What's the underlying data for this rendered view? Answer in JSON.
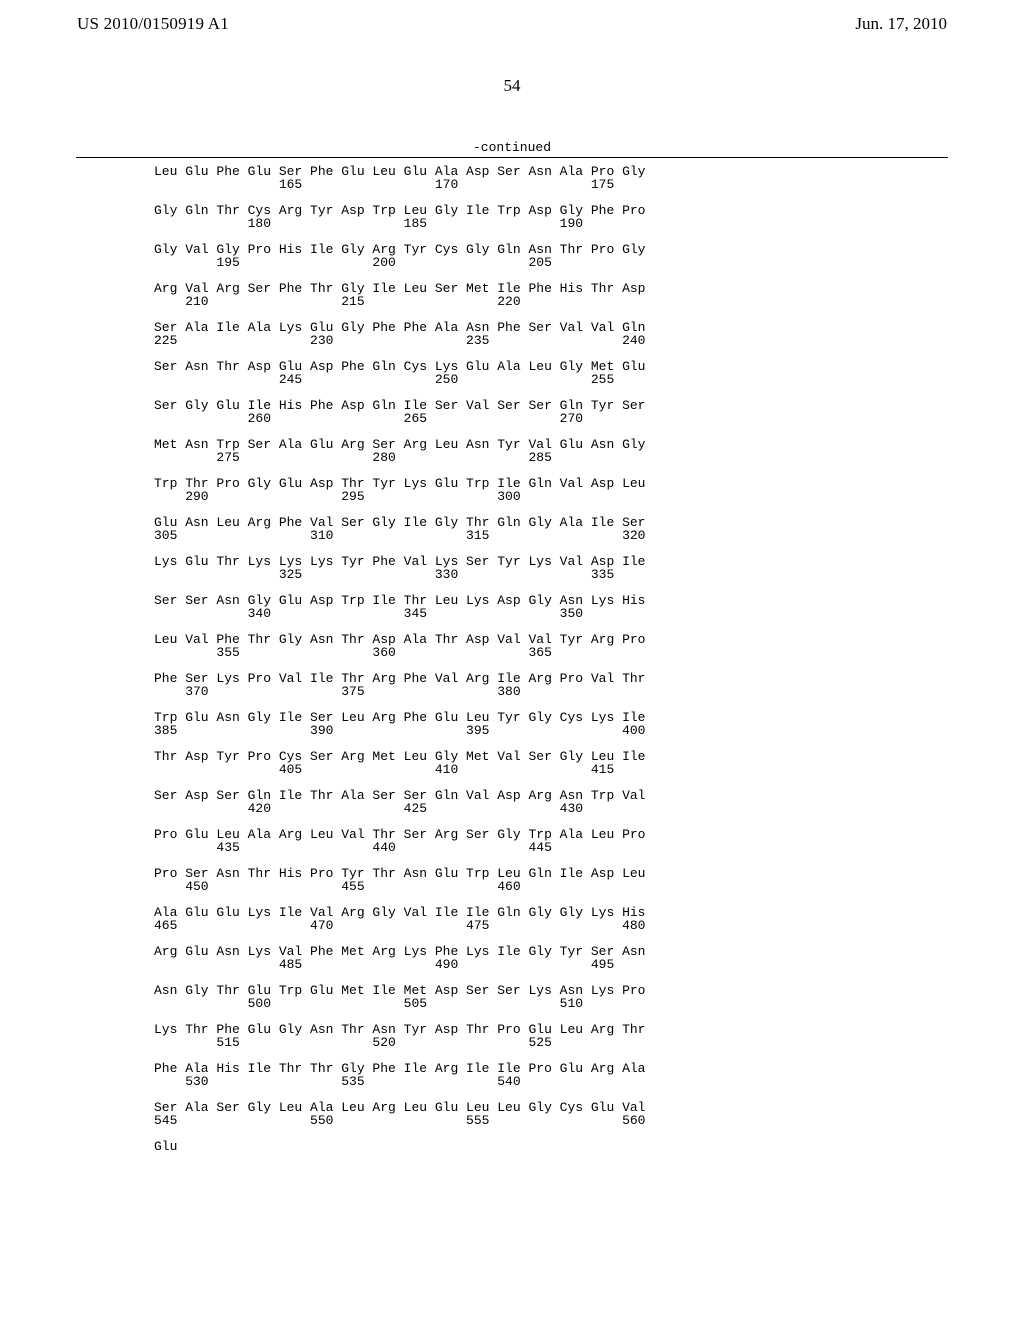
{
  "header": {
    "left": "US 2010/0150919 A1",
    "right": "Jun. 17, 2010"
  },
  "pageNumber": "54",
  "continued": "-continued",
  "blocks": [
    {
      "l1": "Leu Glu Phe Glu Ser Phe Glu Leu Glu Ala Asp Ser Asn Ala Pro Gly",
      "l2": "                165                 170                 175"
    },
    {
      "l1": "Gly Gln Thr Cys Arg Tyr Asp Trp Leu Gly Ile Trp Asp Gly Phe Pro",
      "l2": "            180                 185                 190"
    },
    {
      "l1": "Gly Val Gly Pro His Ile Gly Arg Tyr Cys Gly Gln Asn Thr Pro Gly",
      "l2": "        195                 200                 205"
    },
    {
      "l1": "Arg Val Arg Ser Phe Thr Gly Ile Leu Ser Met Ile Phe His Thr Asp",
      "l2": "    210                 215                 220"
    },
    {
      "l1": "Ser Ala Ile Ala Lys Glu Gly Phe Phe Ala Asn Phe Ser Val Val Gln",
      "l2": "225                 230                 235                 240"
    },
    {
      "l1": "Ser Asn Thr Asp Glu Asp Phe Gln Cys Lys Glu Ala Leu Gly Met Glu",
      "l2": "                245                 250                 255"
    },
    {
      "l1": "Ser Gly Glu Ile His Phe Asp Gln Ile Ser Val Ser Ser Gln Tyr Ser",
      "l2": "            260                 265                 270"
    },
    {
      "l1": "Met Asn Trp Ser Ala Glu Arg Ser Arg Leu Asn Tyr Val Glu Asn Gly",
      "l2": "        275                 280                 285"
    },
    {
      "l1": "Trp Thr Pro Gly Glu Asp Thr Tyr Lys Glu Trp Ile Gln Val Asp Leu",
      "l2": "    290                 295                 300"
    },
    {
      "l1": "Glu Asn Leu Arg Phe Val Ser Gly Ile Gly Thr Gln Gly Ala Ile Ser",
      "l2": "305                 310                 315                 320"
    },
    {
      "l1": "Lys Glu Thr Lys Lys Lys Tyr Phe Val Lys Ser Tyr Lys Val Asp Ile",
      "l2": "                325                 330                 335"
    },
    {
      "l1": "Ser Ser Asn Gly Glu Asp Trp Ile Thr Leu Lys Asp Gly Asn Lys His",
      "l2": "            340                 345                 350"
    },
    {
      "l1": "Leu Val Phe Thr Gly Asn Thr Asp Ala Thr Asp Val Val Tyr Arg Pro",
      "l2": "        355                 360                 365"
    },
    {
      "l1": "Phe Ser Lys Pro Val Ile Thr Arg Phe Val Arg Ile Arg Pro Val Thr",
      "l2": "    370                 375                 380"
    },
    {
      "l1": "Trp Glu Asn Gly Ile Ser Leu Arg Phe Glu Leu Tyr Gly Cys Lys Ile",
      "l2": "385                 390                 395                 400"
    },
    {
      "l1": "Thr Asp Tyr Pro Cys Ser Arg Met Leu Gly Met Val Ser Gly Leu Ile",
      "l2": "                405                 410                 415"
    },
    {
      "l1": "Ser Asp Ser Gln Ile Thr Ala Ser Ser Gln Val Asp Arg Asn Trp Val",
      "l2": "            420                 425                 430"
    },
    {
      "l1": "Pro Glu Leu Ala Arg Leu Val Thr Ser Arg Ser Gly Trp Ala Leu Pro",
      "l2": "        435                 440                 445"
    },
    {
      "l1": "Pro Ser Asn Thr His Pro Tyr Thr Asn Glu Trp Leu Gln Ile Asp Leu",
      "l2": "    450                 455                 460"
    },
    {
      "l1": "Ala Glu Glu Lys Ile Val Arg Gly Val Ile Ile Gln Gly Gly Lys His",
      "l2": "465                 470                 475                 480"
    },
    {
      "l1": "Arg Glu Asn Lys Val Phe Met Arg Lys Phe Lys Ile Gly Tyr Ser Asn",
      "l2": "                485                 490                 495"
    },
    {
      "l1": "Asn Gly Thr Glu Trp Glu Met Ile Met Asp Ser Ser Lys Asn Lys Pro",
      "l2": "            500                 505                 510"
    },
    {
      "l1": "Lys Thr Phe Glu Gly Asn Thr Asn Tyr Asp Thr Pro Glu Leu Arg Thr",
      "l2": "        515                 520                 525"
    },
    {
      "l1": "Phe Ala His Ile Thr Thr Gly Phe Ile Arg Ile Ile Pro Glu Arg Ala",
      "l2": "    530                 535                 540"
    },
    {
      "l1": "Ser Ala Ser Gly Leu Ala Leu Arg Leu Glu Leu Leu Gly Cys Glu Val",
      "l2": "545                 550                 555                 560"
    }
  ],
  "final": "Glu"
}
